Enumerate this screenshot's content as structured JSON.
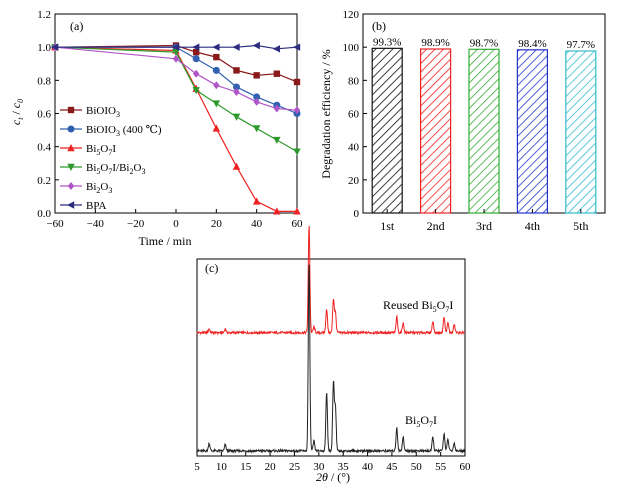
{
  "chart_data": [
    {
      "panel": "(a)",
      "type": "line",
      "xlabel": "Time / min",
      "ylabel": "c_t / c_0",
      "xlim": [
        -60,
        60
      ],
      "ylim": [
        0.0,
        1.2
      ],
      "xticks": [
        -60,
        -40,
        -20,
        0,
        20,
        40,
        60
      ],
      "yticks": [
        0.0,
        0.2,
        0.4,
        0.6,
        0.8,
        1.0,
        1.2
      ],
      "tick_labels_x": [
        "−60",
        "−40",
        "−20",
        "0",
        "20",
        "40",
        "60"
      ],
      "tick_labels_y": [
        "0.0",
        "0.2",
        "0.4",
        "0.6",
        "0.8",
        "1.0",
        "1.2"
      ],
      "legend_position": "left",
      "series": [
        {
          "name": "BiOIO3",
          "label_base": "BiOIO",
          "label_sub": "3",
          "label_tail": "",
          "label_sub2": "",
          "label_tail2": "",
          "color": "#8b1a1a",
          "marker": "square",
          "x": [
            -60,
            0,
            10,
            20,
            30,
            40,
            50,
            60
          ],
          "y": [
            1.0,
            1.01,
            0.97,
            0.94,
            0.86,
            0.83,
            0.84,
            0.79
          ]
        },
        {
          "name": "BiOIO3 (400 °C)",
          "label_base": "BiOIO",
          "label_sub": "3",
          "label_tail": " (400 ℃)",
          "label_sub2": "",
          "label_tail2": "",
          "color": "#3060b0",
          "marker": "circle",
          "x": [
            -60,
            0,
            10,
            20,
            30,
            40,
            50,
            60
          ],
          "y": [
            1.0,
            1.0,
            0.93,
            0.86,
            0.76,
            0.7,
            0.65,
            0.6
          ]
        },
        {
          "name": "Bi5O7I",
          "label_base": "Bi",
          "label_sub": "5",
          "label_tail": "O",
          "label_sub2": "7",
          "label_tail2": "I",
          "color": "#ee2222",
          "marker": "triangle-up",
          "x": [
            -60,
            0,
            10,
            20,
            30,
            40,
            50,
            60
          ],
          "y": [
            1.0,
            0.98,
            0.75,
            0.51,
            0.28,
            0.07,
            0.01,
            0.01
          ]
        },
        {
          "name": "Bi5O7I/Bi2O3",
          "label_base": "Bi",
          "label_sub": "5",
          "label_tail": "O",
          "label_sub2": "7",
          "label_tail2": "I/Bi",
          "label_sub3": "2",
          "label_tail3": "O",
          "label_sub4": "3",
          "color": "#2e9a2e",
          "marker": "triangle-down",
          "x": [
            -60,
            0,
            10,
            20,
            30,
            40,
            50,
            60
          ],
          "y": [
            1.0,
            0.97,
            0.74,
            0.66,
            0.58,
            0.51,
            0.44,
            0.37
          ]
        },
        {
          "name": "Bi2O3",
          "label_base": "Bi",
          "label_sub": "2",
          "label_tail": "O",
          "label_sub2": "3",
          "label_tail2": "",
          "color": "#b055c8",
          "marker": "diamond",
          "x": [
            -60,
            0,
            10,
            20,
            30,
            40,
            50,
            60
          ],
          "y": [
            1.0,
            0.93,
            0.84,
            0.77,
            0.73,
            0.67,
            0.63,
            0.62
          ]
        },
        {
          "name": "BPA",
          "label_base": "BPA",
          "label_sub": "",
          "label_tail": "",
          "label_sub2": "",
          "label_tail2": "",
          "color": "#2c2c80",
          "marker": "triangle-left",
          "x": [
            -60,
            0,
            10,
            20,
            30,
            40,
            50,
            60
          ],
          "y": [
            1.0,
            1.0,
            1.0,
            1.0,
            1.0,
            1.01,
            0.99,
            1.0
          ]
        }
      ]
    },
    {
      "panel": "(b)",
      "type": "bar",
      "ylabel": "Degradation efficiency / %",
      "ylim": [
        0,
        120
      ],
      "yticks": [
        0,
        20,
        40,
        60,
        80,
        100,
        120
      ],
      "categories": [
        "1st",
        "2nd",
        "3rd",
        "4th",
        "5th"
      ],
      "values": [
        99.3,
        98.9,
        98.7,
        98.4,
        97.7
      ],
      "value_labels": [
        "99.3%",
        "98.9%",
        "98.7%",
        "98.4%",
        "97.7%"
      ],
      "bar_colors": [
        "#111111",
        "#ee2222",
        "#33aa33",
        "#2233cc",
        "#33bbcc"
      ],
      "fill": "diagonal-hatch"
    },
    {
      "panel": "(c)",
      "type": "line",
      "xlabel_main": "2θ / (°)",
      "xlim": [
        5,
        60
      ],
      "xticks": [
        5,
        10,
        15,
        20,
        25,
        30,
        35,
        40,
        45,
        50,
        55,
        60
      ],
      "y_axis": "no tick labels",
      "series": [
        {
          "name": "Reused Bi5O7I",
          "color": "#ee2222",
          "baseline": 0.62,
          "peaks": [
            [
              7.5,
              0.02
            ],
            [
              10.8,
              0.02
            ],
            [
              28.0,
              0.55
            ],
            [
              29.0,
              0.03
            ],
            [
              31.6,
              0.12
            ],
            [
              33.0,
              0.17
            ],
            [
              33.4,
              0.1
            ],
            [
              46.0,
              0.08
            ],
            [
              47.3,
              0.05
            ],
            [
              53.4,
              0.06
            ],
            [
              55.7,
              0.08
            ],
            [
              56.5,
              0.05
            ],
            [
              57.8,
              0.04
            ]
          ]
        },
        {
          "name": "Bi5O7I",
          "color": "#222222",
          "baseline": 0.02,
          "peaks": [
            [
              7.5,
              0.04
            ],
            [
              10.8,
              0.03
            ],
            [
              28.0,
              0.95
            ],
            [
              29.0,
              0.05
            ],
            [
              31.6,
              0.3
            ],
            [
              33.0,
              0.35
            ],
            [
              33.4,
              0.22
            ],
            [
              46.0,
              0.12
            ],
            [
              47.3,
              0.07
            ],
            [
              53.4,
              0.07
            ],
            [
              55.7,
              0.09
            ],
            [
              56.5,
              0.06
            ],
            [
              57.8,
              0.04
            ]
          ]
        }
      ]
    }
  ]
}
